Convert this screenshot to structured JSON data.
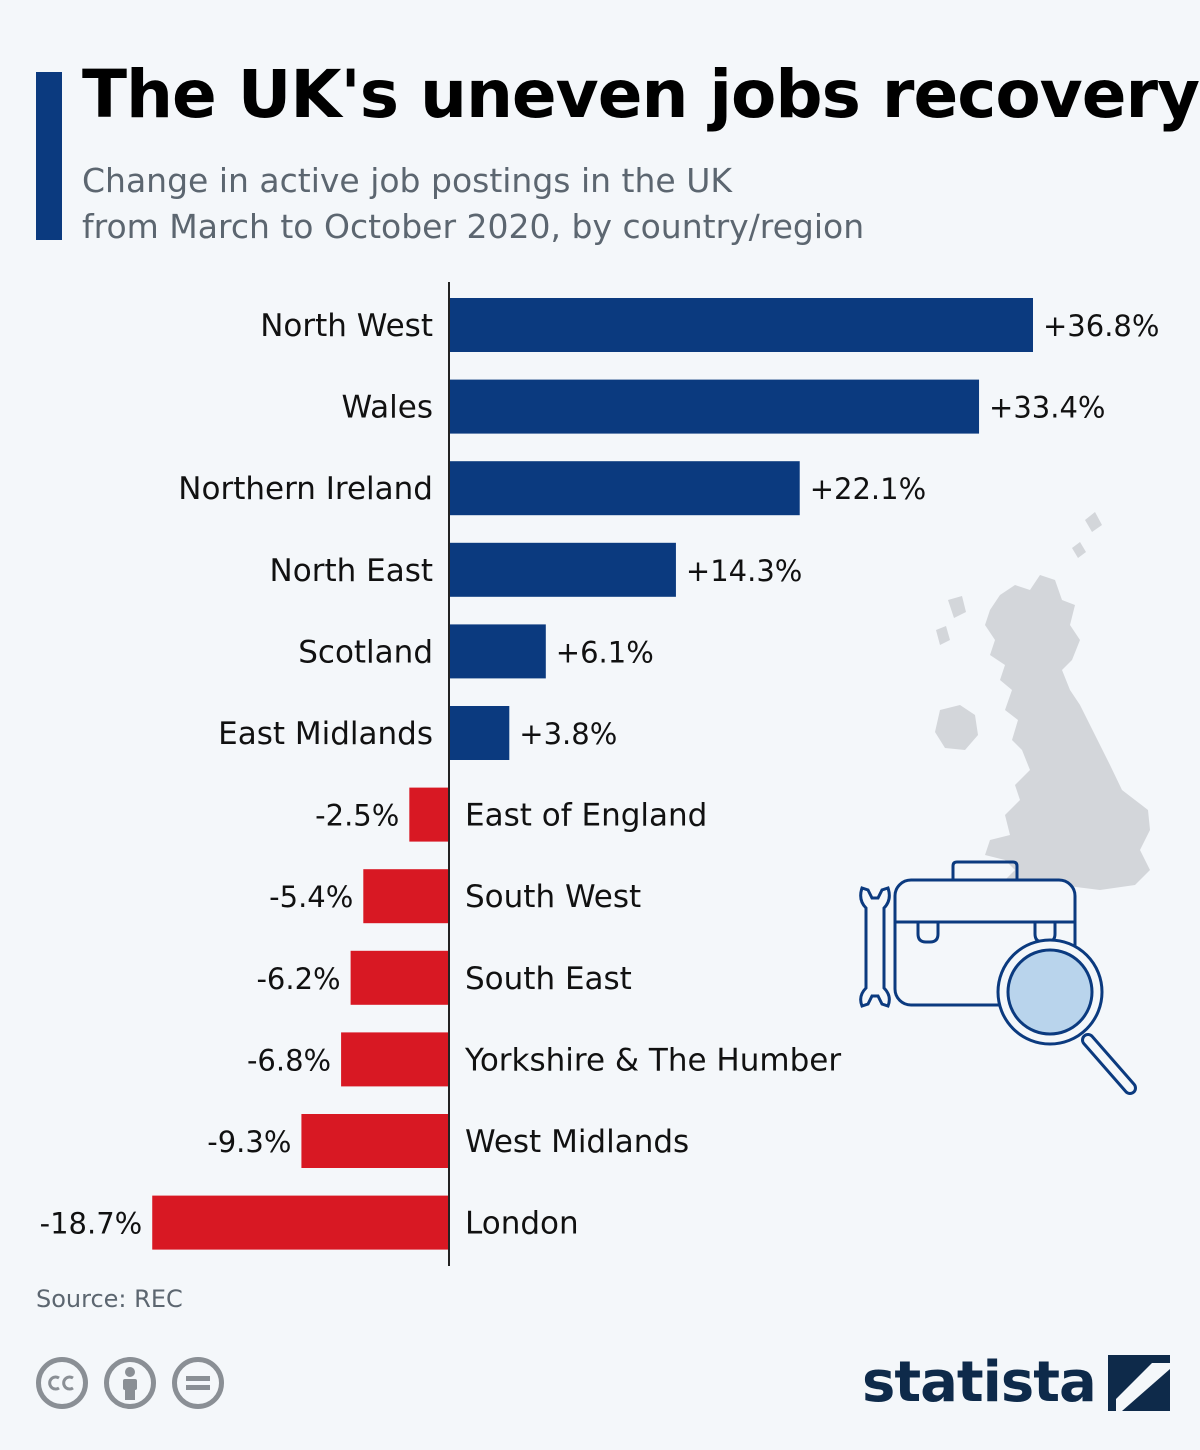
{
  "header": {
    "title": "The UK's uneven jobs recovery",
    "subtitle_line1": "Change in active job postings in the UK",
    "subtitle_line2": "from March to October 2020, by country/region"
  },
  "colors": {
    "positive": "#0b3a7f",
    "negative": "#d81823",
    "accent": "#0b3a7f"
  },
  "chart_data": {
    "type": "bar",
    "orientation": "horizontal",
    "title": "The UK's uneven jobs recovery",
    "xlabel": "",
    "ylabel": "",
    "xlim": [
      -18.7,
      36.8
    ],
    "categories": [
      "North West",
      "Wales",
      "Northern Ireland",
      "North East",
      "Scotland",
      "East Midlands",
      "East of England",
      "South West",
      "South East",
      "Yorkshire & The Humber",
      "West Midlands",
      "London"
    ],
    "values": [
      36.8,
      33.4,
      22.1,
      14.3,
      6.1,
      3.8,
      -2.5,
      -5.4,
      -6.2,
      -6.8,
      -9.3,
      -18.7
    ],
    "value_labels": [
      "+36.8%",
      "+33.4%",
      "+22.1%",
      "+14.3%",
      "+6.1%",
      "+3.8%",
      "-2.5%",
      "-5.4%",
      "-6.2%",
      "-6.8%",
      "-9.3%",
      "-18.7%"
    ],
    "grid": false,
    "legend": "none"
  },
  "footer": {
    "source": "Source: REC",
    "brand": "statista"
  },
  "icons": [
    "uk-map-icon",
    "wrench-icon",
    "briefcase-icon",
    "magnifier-icon",
    "cc-icon",
    "attribution-icon",
    "no-derivatives-icon",
    "statista-logo-icon"
  ]
}
